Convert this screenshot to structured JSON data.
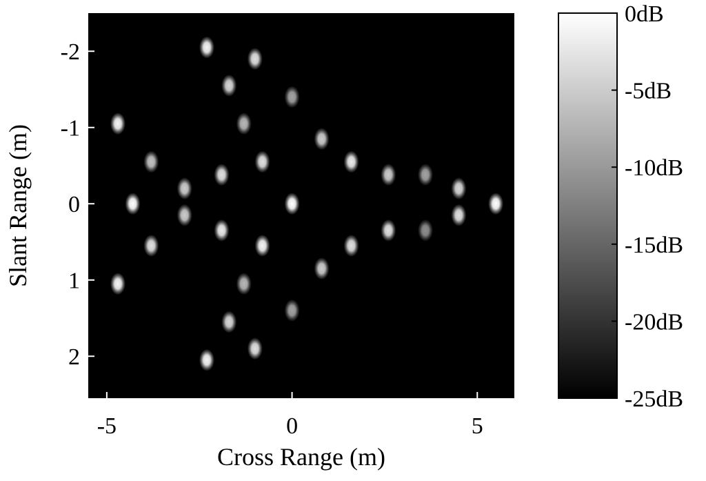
{
  "chart_data": {
    "type": "heatmap",
    "title": "",
    "xlabel": "Cross Range (m)",
    "ylabel": "Slant Range (m)",
    "xlim": [
      -5.5,
      6.0
    ],
    "ylim": [
      -2.5,
      2.55
    ],
    "y_reversed": true,
    "background_db": -25,
    "xticks": [
      {
        "value": -5,
        "label": "-5"
      },
      {
        "value": 0,
        "label": "0"
      },
      {
        "value": 5,
        "label": "5"
      }
    ],
    "yticks": [
      {
        "value": -2,
        "label": "-2"
      },
      {
        "value": -1,
        "label": "-1"
      },
      {
        "value": 0,
        "label": "0"
      },
      {
        "value": 1,
        "label": "1"
      },
      {
        "value": 2,
        "label": "2"
      }
    ],
    "colorbar": {
      "range_db": [
        -25,
        0
      ],
      "colormap": "gray",
      "ticks": [
        {
          "value": 0,
          "label": "0dB"
        },
        {
          "value": -5,
          "label": "-5dB"
        },
        {
          "value": -10,
          "label": "-10dB"
        },
        {
          "value": -15,
          "label": "-15dB"
        },
        {
          "value": -20,
          "label": "-20dB"
        },
        {
          "value": -25,
          "label": "-25dB"
        }
      ]
    },
    "points": [
      {
        "x": -2.3,
        "y": -2.05,
        "db": -1
      },
      {
        "x": -1.0,
        "y": -1.9,
        "db": -3
      },
      {
        "x": -1.7,
        "y": -1.55,
        "db": -4
      },
      {
        "x": 0.0,
        "y": -1.4,
        "db": -9
      },
      {
        "x": -4.7,
        "y": -1.05,
        "db": -1
      },
      {
        "x": -1.3,
        "y": -1.05,
        "db": -7
      },
      {
        "x": 0.8,
        "y": -0.85,
        "db": -5
      },
      {
        "x": -3.8,
        "y": -0.55,
        "db": -6
      },
      {
        "x": -0.8,
        "y": -0.55,
        "db": -3
      },
      {
        "x": 1.6,
        "y": -0.55,
        "db": -2
      },
      {
        "x": -1.9,
        "y": -0.38,
        "db": -3
      },
      {
        "x": 2.6,
        "y": -0.38,
        "db": -5
      },
      {
        "x": 3.6,
        "y": -0.38,
        "db": -9
      },
      {
        "x": -2.9,
        "y": -0.2,
        "db": -5
      },
      {
        "x": 4.5,
        "y": -0.2,
        "db": -4
      },
      {
        "x": -4.3,
        "y": 0.0,
        "db": 0
      },
      {
        "x": 0.0,
        "y": 0.0,
        "db": 0
      },
      {
        "x": 5.5,
        "y": 0.0,
        "db": 0
      },
      {
        "x": -2.9,
        "y": 0.15,
        "db": -5
      },
      {
        "x": 4.5,
        "y": 0.15,
        "db": -3
      },
      {
        "x": -1.9,
        "y": 0.35,
        "db": -2
      },
      {
        "x": 2.6,
        "y": 0.35,
        "db": -3
      },
      {
        "x": 3.6,
        "y": 0.35,
        "db": -11
      },
      {
        "x": -3.8,
        "y": 0.55,
        "db": -3
      },
      {
        "x": -0.8,
        "y": 0.55,
        "db": -1
      },
      {
        "x": 1.6,
        "y": 0.55,
        "db": -3
      },
      {
        "x": 0.8,
        "y": 0.85,
        "db": -5
      },
      {
        "x": -4.7,
        "y": 1.05,
        "db": -1
      },
      {
        "x": -1.3,
        "y": 1.05,
        "db": -7
      },
      {
        "x": 0.0,
        "y": 1.4,
        "db": -9
      },
      {
        "x": -1.7,
        "y": 1.55,
        "db": -4
      },
      {
        "x": -1.0,
        "y": 1.9,
        "db": -3
      },
      {
        "x": -2.3,
        "y": 2.05,
        "db": -1
      }
    ]
  }
}
